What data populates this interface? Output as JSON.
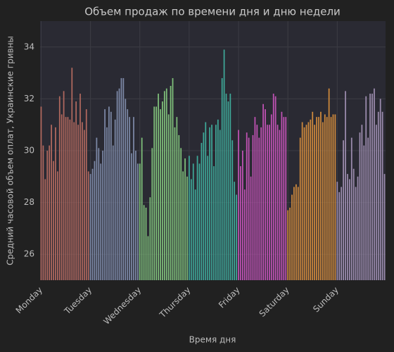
{
  "chart_data": {
    "type": "bar",
    "title": "Объем продаж по времени дня и дню недели",
    "xlabel": "Время дня",
    "ylabel": "Средний часовой объем оплат, Украинские гривны",
    "categories": [
      "Monday",
      null,
      null,
      null,
      null,
      null,
      null,
      null,
      null,
      null,
      null,
      null,
      null,
      null,
      null,
      null,
      null,
      null,
      null,
      null,
      null,
      null,
      null,
      null,
      "Tuesday",
      null,
      null,
      null,
      null,
      null,
      null,
      null,
      null,
      null,
      null,
      null,
      null,
      null,
      null,
      null,
      null,
      null,
      null,
      null,
      null,
      null,
      null,
      null,
      "Wednesday",
      null,
      null,
      null,
      null,
      null,
      null,
      null,
      null,
      null,
      null,
      null,
      null,
      null,
      null,
      null,
      null,
      null,
      null,
      null,
      null,
      null,
      null,
      null,
      "Thursday",
      null,
      null,
      null,
      null,
      null,
      null,
      null,
      null,
      null,
      null,
      null,
      null,
      null,
      null,
      null,
      null,
      null,
      null,
      null,
      null,
      null,
      null,
      null,
      "Friday",
      null,
      null,
      null,
      null,
      null,
      null,
      null,
      null,
      null,
      null,
      null,
      null,
      null,
      null,
      null,
      null,
      null,
      null,
      null,
      null,
      null,
      null,
      null,
      "Saturday",
      null,
      null,
      null,
      null,
      null,
      null,
      null,
      null,
      null,
      null,
      null,
      null,
      null,
      null,
      null,
      null,
      null,
      null,
      null,
      null,
      null,
      null,
      null,
      "Sunday",
      null,
      null,
      null,
      null,
      null,
      null,
      null,
      null,
      null,
      null,
      null,
      null,
      null,
      null,
      null,
      null,
      null,
      null,
      null,
      null,
      null,
      null,
      null
    ],
    "values": [
      31.7,
      30.2,
      28.9,
      30.0,
      30.2,
      31.0,
      29.6,
      30.9,
      29.2,
      32.1,
      31.4,
      32.3,
      31.3,
      31.3,
      31.2,
      33.2,
      31.1,
      31.9,
      31.0,
      32.2,
      31.1,
      30.8,
      31.6,
      29.2,
      29.1,
      29.3,
      29.6,
      30.5,
      30.1,
      29.5,
      30.0,
      31.6,
      30.9,
      31.7,
      31.5,
      30.2,
      31.2,
      32.3,
      32.4,
      32.8,
      32.8,
      32.0,
      31.6,
      31.3,
      29.9,
      31.3,
      30.0,
      29.5,
      29.5,
      30.5,
      27.9,
      27.8,
      26.7,
      28.2,
      30.1,
      31.7,
      31.7,
      32.2,
      31.6,
      31.9,
      32.3,
      32.4,
      31.4,
      32.5,
      32.8,
      30.9,
      31.3,
      30.6,
      30.1,
      29.2,
      29.7,
      29.0,
      29.8,
      28.9,
      29.5,
      28.5,
      29.8,
      29.5,
      30.3,
      30.7,
      31.1,
      29.8,
      30.9,
      31.0,
      29.4,
      31.0,
      31.2,
      30.8,
      32.8,
      33.9,
      32.2,
      31.9,
      32.2,
      30.4,
      28.8,
      28.3,
      30.8,
      29.4,
      30.0,
      28.5,
      30.7,
      30.5,
      29.0,
      30.6,
      31.3,
      31.0,
      30.5,
      30.9,
      31.8,
      31.6,
      31.0,
      31.0,
      31.4,
      32.2,
      32.1,
      31.0,
      30.8,
      31.5,
      31.3,
      31.3,
      27.7,
      27.8,
      28.3,
      28.6,
      28.7,
      28.6,
      30.5,
      31.1,
      30.9,
      31.0,
      31.1,
      31.2,
      31.5,
      31.0,
      31.3,
      31.3,
      31.5,
      31.1,
      31.4,
      31.3,
      32.4,
      31.3,
      31.4,
      31.4,
      28.8,
      28.4,
      28.6,
      30.4,
      32.3,
      29.1,
      28.9,
      30.5,
      29.3,
      28.6,
      29.0,
      30.7,
      31.0,
      30.2,
      32.1,
      30.5,
      32.2,
      32.2,
      32.4,
      31.0,
      31.5,
      32.0,
      31.5,
      29.1
    ],
    "colors": [
      "#b0685e",
      "#7c88a6",
      "#7fc07a",
      "#3ea898",
      "#c052b4",
      "#d08a3c",
      "#9c8cae"
    ],
    "ylim": [
      25,
      35
    ],
    "yticks": [
      26,
      28,
      30,
      32,
      34
    ],
    "grid": true
  }
}
